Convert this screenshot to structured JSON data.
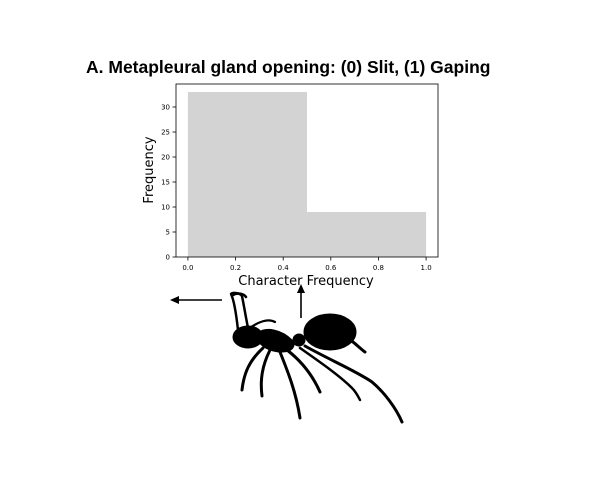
{
  "figure": {
    "panel_label": "A.",
    "title": "A.  Metapleural gland opening: (0) Slit, (1) Gaping"
  },
  "chart_data": {
    "type": "bar",
    "subtype": "histogram",
    "bins": [
      {
        "from": 0.0,
        "to": 0.5,
        "value": 33
      },
      {
        "from": 0.5,
        "to": 1.0,
        "value": 9
      }
    ],
    "bar_color": "#d3d3d3",
    "xlabel": "Character Frequency",
    "ylabel": "Frequency",
    "xlim": [
      -0.05,
      1.05
    ],
    "ylim": [
      0,
      34.6
    ],
    "xticks": [
      0.0,
      0.2,
      0.4,
      0.6,
      0.8,
      1.0
    ],
    "xtick_labels": [
      "0.0",
      "0.2",
      "0.4",
      "0.6",
      "0.8",
      "1.0"
    ],
    "yticks": [
      0,
      5,
      10,
      15,
      20,
      25,
      30
    ],
    "ytick_labels": [
      "0",
      "5",
      "10",
      "15",
      "20",
      "25",
      "30"
    ],
    "grid": false
  },
  "illustration": {
    "subject": "ant silhouette",
    "color": "#000000",
    "arrows": [
      "left-pointing",
      "up-pointing"
    ]
  }
}
